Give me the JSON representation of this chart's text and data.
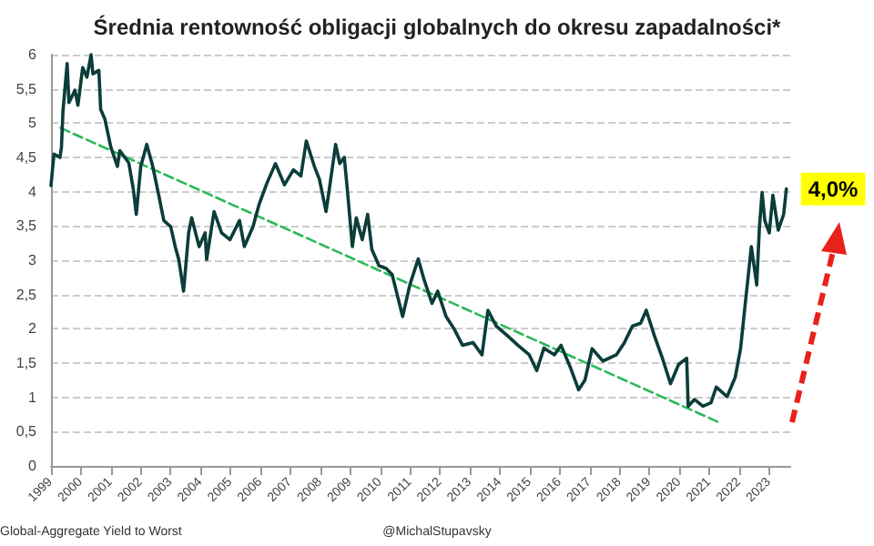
{
  "chart_data": {
    "type": "line",
    "title": "Średnia rentowność obligacji globalnych do okresu zapadalności*",
    "annotations": [
      "Global-Aggregate Yield to Worst",
      "@MichalStupavsky",
      {
        "text": "4,0%",
        "x": 2023.57,
        "y": 4.04
      }
    ],
    "xlim": [
      1999,
      2023.7
    ],
    "xticks": [
      1999,
      2000,
      2001,
      2002,
      2003,
      2004,
      2005,
      2006,
      2007,
      2008,
      2009,
      2010,
      2011,
      2012,
      2013,
      2014,
      2015,
      2016,
      2017,
      2018,
      2019,
      2020,
      2021,
      2022,
      2023
    ],
    "ylim": [
      0,
      6
    ],
    "yticks": [
      0,
      {
        "value": 0.5,
        "label": "0,5"
      },
      1,
      {
        "value": 1.5,
        "label": "1,5"
      },
      2,
      {
        "value": 2.5,
        "label": "2,5"
      },
      3,
      {
        "value": 3.5,
        "label": "3,5"
      },
      4,
      {
        "value": 4.5,
        "label": "4,5"
      },
      5,
      {
        "value": 5.5,
        "label": "5,5"
      },
      6
    ],
    "grid": "y",
    "marker": "none",
    "series": [
      {
        "color": "#0b3d3a",
        "x": [
          1999.0,
          1999.1,
          1999.3,
          1999.35,
          1999.4,
          1999.54,
          1999.6,
          1999.8,
          1999.9,
          2000.06,
          2000.2,
          2000.34,
          2000.4,
          2000.6,
          2000.66,
          2000.8,
          2001.0,
          2001.22,
          2001.3,
          2001.6,
          2001.75,
          2001.85,
          2002.0,
          2002.2,
          2002.4,
          2002.6,
          2002.77,
          2003.0,
          2003.15,
          2003.27,
          2003.43,
          2003.6,
          2003.7,
          2003.95,
          2004.15,
          2004.2,
          2004.45,
          2004.7,
          2004.98,
          2005.3,
          2005.46,
          2005.75,
          2005.95,
          2006.22,
          2006.5,
          2006.8,
          2007.1,
          2007.35,
          2007.53,
          2007.8,
          2007.97,
          2008.19,
          2008.3,
          2008.51,
          2008.65,
          2008.8,
          2008.9,
          2009.07,
          2009.2,
          2009.4,
          2009.58,
          2009.72,
          2009.96,
          2010.2,
          2010.4,
          2010.75,
          2010.99,
          2011.27,
          2011.45,
          2011.73,
          2011.92,
          2012.2,
          2012.48,
          2012.75,
          2013.1,
          2013.4,
          2013.6,
          2013.88,
          2014.25,
          2014.6,
          2014.98,
          2015.23,
          2015.47,
          2015.82,
          2016.04,
          2016.36,
          2016.63,
          2016.84,
          2017.08,
          2017.44,
          2017.89,
          2018.16,
          2018.43,
          2018.7,
          2018.89,
          2019.16,
          2019.43,
          2019.7,
          2019.97,
          2020.24,
          2020.29,
          2020.5,
          2020.78,
          2021.05,
          2021.23,
          2021.59,
          2021.86,
          2022.04,
          2022.22,
          2022.4,
          2022.49,
          2022.58,
          2022.67,
          2022.76,
          2022.85,
          2023.0,
          2023.12,
          2023.3,
          2023.48,
          2023.57
        ],
        "values": [
          4.09,
          4.55,
          4.5,
          4.65,
          5.17,
          5.87,
          5.3,
          5.48,
          5.26,
          5.81,
          5.67,
          6.0,
          5.72,
          5.77,
          5.2,
          5.06,
          4.65,
          4.37,
          4.6,
          4.42,
          4.04,
          3.67,
          4.37,
          4.69,
          4.37,
          3.95,
          3.58,
          3.49,
          3.2,
          3.01,
          2.55,
          3.4,
          3.62,
          3.2,
          3.4,
          3.01,
          3.71,
          3.4,
          3.3,
          3.58,
          3.2,
          3.49,
          3.81,
          4.13,
          4.41,
          4.1,
          4.32,
          4.23,
          4.74,
          4.37,
          4.18,
          3.71,
          4.04,
          4.69,
          4.41,
          4.5,
          4.04,
          3.2,
          3.62,
          3.3,
          3.67,
          3.16,
          2.92,
          2.88,
          2.79,
          2.18,
          2.64,
          3.02,
          2.74,
          2.37,
          2.55,
          2.18,
          1.99,
          1.76,
          1.8,
          1.62,
          2.27,
          2.04,
          1.9,
          1.76,
          1.62,
          1.39,
          1.72,
          1.62,
          1.76,
          1.43,
          1.11,
          1.25,
          1.71,
          1.53,
          1.62,
          1.8,
          2.04,
          2.08,
          2.27,
          1.9,
          1.57,
          1.2,
          1.48,
          1.57,
          0.87,
          0.97,
          0.87,
          0.92,
          1.15,
          1.01,
          1.29,
          1.71,
          2.46,
          3.2,
          2.92,
          2.64,
          3.48,
          3.99,
          3.58,
          3.4,
          3.95,
          3.44,
          3.67,
          4.04
        ]
      },
      {
        "type": "line",
        "color": "#2bb85a",
        "line_style": "dashed",
        "x": [
          1999.32,
          2021.3
        ],
        "values": [
          4.93,
          0.64
        ]
      }
    ]
  }
}
